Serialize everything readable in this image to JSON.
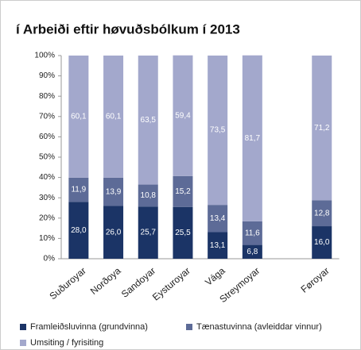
{
  "chart_data": {
    "type": "stacked_bar",
    "title": "í Arbeiði eftir høvuðsbólkum í 2013",
    "categories": [
      "Suðuroyar",
      "Norðoya",
      "Sandoyar",
      "Eysturoyar",
      "Vága",
      "Streymoyar",
      null,
      "Føroyar"
    ],
    "series": [
      {
        "name": "Framleiðsluvinna (grundvinna)",
        "color": "#1b3466",
        "values": [
          28.0,
          26.0,
          25.7,
          25.5,
          13.1,
          6.8,
          null,
          16.0
        ],
        "value_labels": [
          "28,0",
          "26,0",
          "25,7",
          "25,5",
          "13,1",
          "6,8",
          null,
          "16,0"
        ]
      },
      {
        "name": "Tænastuvinna (avleiddar vinnur)",
        "color": "#5d6b97",
        "values": [
          11.9,
          13.9,
          10.8,
          15.2,
          13.4,
          11.6,
          null,
          12.8
        ],
        "value_labels": [
          "11,9",
          "13,9",
          "10,8",
          "15,2",
          "13,4",
          "11,6",
          null,
          "12,8"
        ]
      },
      {
        "name": "Umsiting / fyrisiting",
        "color": "#a3a8cc",
        "values": [
          60.1,
          60.1,
          63.5,
          59.4,
          73.5,
          81.7,
          null,
          71.2
        ],
        "value_labels": [
          "60,1",
          "60,1",
          "63,5",
          "59,4",
          "73,5",
          "81,7",
          null,
          "71,2"
        ]
      }
    ],
    "ylim": [
      0,
      100
    ],
    "yticks": [
      {
        "value": 0,
        "label": "0%"
      },
      {
        "value": 10,
        "label": "10%"
      },
      {
        "value": 20,
        "label": "20%"
      },
      {
        "value": 30,
        "label": "30%"
      },
      {
        "value": 40,
        "label": "40%"
      },
      {
        "value": 50,
        "label": "50%"
      },
      {
        "value": 60,
        "label": "60%"
      },
      {
        "value": 70,
        "label": "70%"
      },
      {
        "value": 80,
        "label": "80%"
      },
      {
        "value": 90,
        "label": "90%"
      },
      {
        "value": 100,
        "label": "100%"
      }
    ],
    "legend": "bottom"
  }
}
